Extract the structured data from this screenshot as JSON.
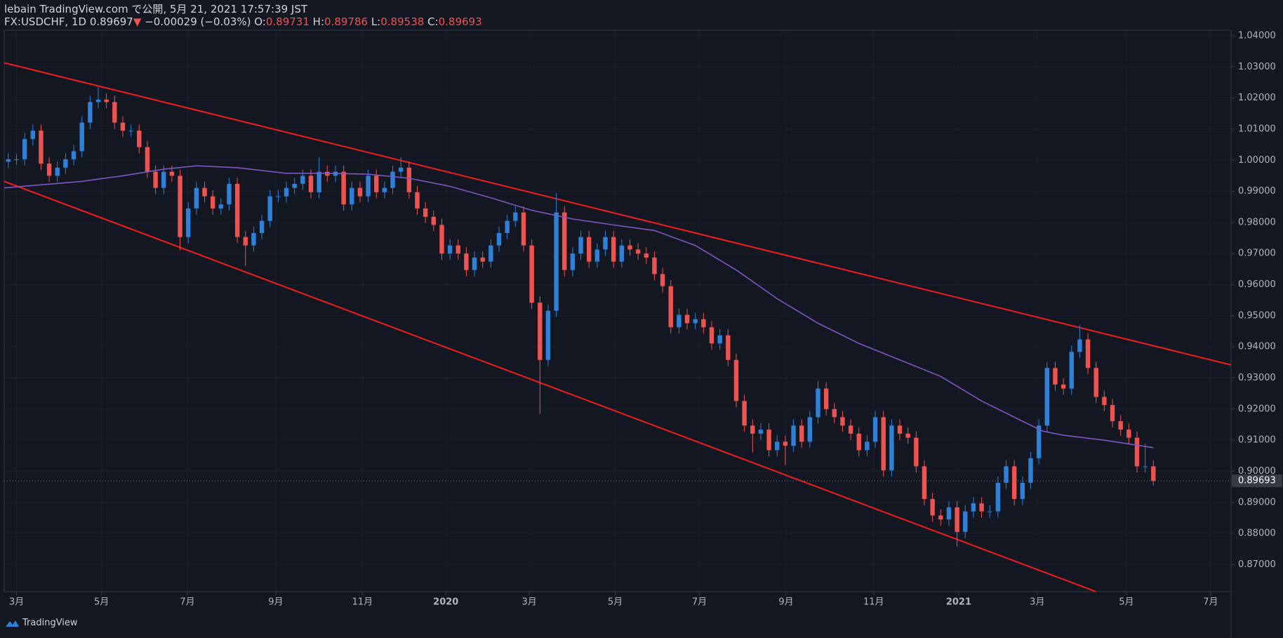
{
  "header": {
    "published": "lebain TradingView.com で公開, 5月 21, 2021 17:57:39 JST",
    "symbol": "FX:USDCHF, 1D",
    "price": "0.89697",
    "arrow": "▼",
    "change": "−0.00029 (−0.03%)",
    "ohlc": [
      {
        "label": "O:",
        "value": "0.89731"
      },
      {
        "label": "H:",
        "value": "0.89786"
      },
      {
        "label": "L:",
        "value": "0.89538"
      },
      {
        "label": "C:",
        "value": "0.89693"
      }
    ]
  },
  "footer": {
    "brand": "TradingView"
  },
  "chart_data": {
    "type": "candlestick",
    "up_color": "#2f80d8",
    "down_color": "#ef5350",
    "xlim": [
      -0.5,
      149.5
    ],
    "ylim": [
      0.8613,
      1.0418
    ],
    "grid": true,
    "xticks": [
      {
        "value": 1.0,
        "label": "3月"
      },
      {
        "value": 11.4,
        "label": "5月"
      },
      {
        "value": 21.9,
        "label": "7月"
      },
      {
        "value": 32.7,
        "label": "9月"
      },
      {
        "value": 43.3,
        "label": "11月"
      },
      {
        "value": 53.5,
        "label": "2020"
      },
      {
        "value": 63.7,
        "label": "3月"
      },
      {
        "value": 74.2,
        "label": "5月"
      },
      {
        "value": 84.5,
        "label": "7月"
      },
      {
        "value": 95.1,
        "label": "9月"
      },
      {
        "value": 105.8,
        "label": "11月"
      },
      {
        "value": 116.2,
        "label": "2021"
      },
      {
        "value": 125.8,
        "label": "3月"
      },
      {
        "value": 136.7,
        "label": "5月"
      },
      {
        "value": 147.0,
        "label": "7月"
      }
    ],
    "yticks": [
      {
        "value": 0.87,
        "label": "0.87000"
      },
      {
        "value": 0.88,
        "label": "0.88000"
      },
      {
        "value": 0.89,
        "label": "0.89000"
      },
      {
        "value": 0.9,
        "label": "0.90000"
      },
      {
        "value": 0.91,
        "label": "0.91000"
      },
      {
        "value": 0.92,
        "label": "0.92000"
      },
      {
        "value": 0.93,
        "label": "0.93000"
      },
      {
        "value": 0.94,
        "label": "0.94000"
      },
      {
        "value": 0.95,
        "label": "0.95000"
      },
      {
        "value": 0.96,
        "label": "0.96000"
      },
      {
        "value": 0.97,
        "label": "0.97000"
      },
      {
        "value": 0.98,
        "label": "0.98000"
      },
      {
        "value": 0.99,
        "label": "0.99000"
      },
      {
        "value": 1.0,
        "label": "1.00000"
      },
      {
        "value": 1.01,
        "label": "1.01000"
      },
      {
        "value": 1.02,
        "label": "1.02000"
      },
      {
        "value": 1.03,
        "label": "1.03000"
      },
      {
        "value": 1.04,
        "label": "1.04000"
      }
    ],
    "last_price": {
      "value": 0.89693,
      "label": "0.89693"
    },
    "candles": [
      [
        0.9995,
        1.0023,
        0.9975,
        1.0003
      ],
      [
        1.0003,
        1.002,
        0.9985,
        1.0003
      ],
      [
        1.0003,
        1.0088,
        0.9983,
        1.0068
      ],
      [
        1.0068,
        1.0115,
        1.0048,
        1.0095
      ],
      [
        1.0095,
        1.0115,
        0.9969,
        0.9989
      ],
      [
        0.9989,
        1.0009,
        0.993,
        0.995
      ],
      [
        0.995,
        0.9996,
        0.993,
        0.9976
      ],
      [
        0.9976,
        1.0023,
        0.9956,
        1.0003
      ],
      [
        1.0003,
        1.0049,
        0.9983,
        1.0029
      ],
      [
        1.0029,
        1.0141,
        1.0009,
        1.0121
      ],
      [
        1.0121,
        1.0207,
        1.0101,
        1.0187
      ],
      [
        1.0187,
        1.0235,
        1.0167,
        1.0195
      ],
      [
        1.0195,
        1.0215,
        1.0167,
        1.0187
      ],
      [
        1.0187,
        1.0207,
        1.0101,
        1.0121
      ],
      [
        1.0121,
        1.0141,
        1.0075,
        1.0095
      ],
      [
        1.0095,
        1.0115,
        1.0075,
        1.0095
      ],
      [
        1.0095,
        1.0115,
        1.0022,
        1.0042
      ],
      [
        1.0042,
        1.0062,
        0.9943,
        0.9963
      ],
      [
        0.9963,
        0.9983,
        0.9891,
        0.9911
      ],
      [
        0.9911,
        0.9983,
        0.9891,
        0.9963
      ],
      [
        0.9963,
        0.9983,
        0.993,
        0.995
      ],
      [
        0.995,
        0.997,
        0.971,
        0.9753
      ],
      [
        0.9753,
        0.9865,
        0.9733,
        0.9845
      ],
      [
        0.9845,
        0.9931,
        0.9825,
        0.9911
      ],
      [
        0.9911,
        0.9931,
        0.9864,
        0.9884
      ],
      [
        0.9884,
        0.9904,
        0.9825,
        0.9845
      ],
      [
        0.9845,
        0.9878,
        0.9825,
        0.9858
      ],
      [
        0.9858,
        0.9944,
        0.9838,
        0.9924
      ],
      [
        0.9924,
        0.9944,
        0.9733,
        0.9753
      ],
      [
        0.9753,
        0.9773,
        0.966,
        0.9726
      ],
      [
        0.9726,
        0.9786,
        0.9706,
        0.9766
      ],
      [
        0.9766,
        0.9825,
        0.9746,
        0.9805
      ],
      [
        0.9805,
        0.9904,
        0.9785,
        0.9884
      ],
      [
        0.9884,
        0.9904,
        0.9864,
        0.9884
      ],
      [
        0.9884,
        0.9931,
        0.9864,
        0.9911
      ],
      [
        0.9911,
        0.9944,
        0.9891,
        0.9924
      ],
      [
        0.9924,
        0.997,
        0.9904,
        0.995
      ],
      [
        0.995,
        0.997,
        0.9877,
        0.9897
      ],
      [
        0.9897,
        1.001,
        0.9877,
        0.9963
      ],
      [
        0.9963,
        0.9983,
        0.993,
        0.995
      ],
      [
        0.995,
        0.9983,
        0.993,
        0.9963
      ],
      [
        0.9963,
        0.9983,
        0.9838,
        0.9858
      ],
      [
        0.9858,
        0.9931,
        0.9838,
        0.9911
      ],
      [
        0.9911,
        0.9931,
        0.9864,
        0.9884
      ],
      [
        0.9884,
        0.997,
        0.9864,
        0.995
      ],
      [
        0.995,
        0.997,
        0.9877,
        0.9897
      ],
      [
        0.9897,
        0.9931,
        0.9877,
        0.9911
      ],
      [
        0.9911,
        0.9983,
        0.9891,
        0.9963
      ],
      [
        0.9963,
        1.001,
        0.9943,
        0.9976
      ],
      [
        0.9976,
        0.9996,
        0.9877,
        0.9897
      ],
      [
        0.9897,
        0.9917,
        0.9825,
        0.9845
      ],
      [
        0.9845,
        0.9865,
        0.9798,
        0.9818
      ],
      [
        0.9818,
        0.9838,
        0.9772,
        0.9792
      ],
      [
        0.9792,
        0.9812,
        0.968,
        0.97
      ],
      [
        0.97,
        0.9746,
        0.968,
        0.9726
      ],
      [
        0.9726,
        0.9746,
        0.968,
        0.97
      ],
      [
        0.97,
        0.972,
        0.9627,
        0.9647
      ],
      [
        0.9647,
        0.9707,
        0.9627,
        0.9687
      ],
      [
        0.9687,
        0.9707,
        0.9654,
        0.9674
      ],
      [
        0.9674,
        0.9746,
        0.9654,
        0.9726
      ],
      [
        0.9726,
        0.9786,
        0.9706,
        0.9766
      ],
      [
        0.9766,
        0.9825,
        0.9746,
        0.9805
      ],
      [
        0.9805,
        0.9852,
        0.9785,
        0.9832
      ],
      [
        0.9832,
        0.9852,
        0.9706,
        0.9726
      ],
      [
        0.9726,
        0.9746,
        0.9522,
        0.9542
      ],
      [
        0.9542,
        0.9562,
        0.9185,
        0.9358
      ],
      [
        0.9358,
        0.9536,
        0.9338,
        0.9516
      ],
      [
        0.9516,
        0.9895,
        0.9496,
        0.9832
      ],
      [
        0.9832,
        0.9852,
        0.9627,
        0.9647
      ],
      [
        0.9647,
        0.972,
        0.9627,
        0.97
      ],
      [
        0.97,
        0.9773,
        0.968,
        0.9753
      ],
      [
        0.9753,
        0.9773,
        0.9654,
        0.9674
      ],
      [
        0.9674,
        0.9733,
        0.9654,
        0.9713
      ],
      [
        0.9713,
        0.9773,
        0.9693,
        0.9753
      ],
      [
        0.9753,
        0.9773,
        0.9654,
        0.9674
      ],
      [
        0.9674,
        0.9746,
        0.9654,
        0.9726
      ],
      [
        0.9726,
        0.9746,
        0.9693,
        0.9713
      ],
      [
        0.9713,
        0.9733,
        0.968,
        0.97
      ],
      [
        0.97,
        0.972,
        0.9667,
        0.9687
      ],
      [
        0.9687,
        0.9707,
        0.9614,
        0.9634
      ],
      [
        0.9634,
        0.9654,
        0.9575,
        0.9595
      ],
      [
        0.9595,
        0.9615,
        0.9443,
        0.9463
      ],
      [
        0.9463,
        0.9523,
        0.9443,
        0.9503
      ],
      [
        0.9503,
        0.9523,
        0.9456,
        0.9476
      ],
      [
        0.9476,
        0.9509,
        0.9456,
        0.9489
      ],
      [
        0.9489,
        0.9509,
        0.9443,
        0.9463
      ],
      [
        0.9463,
        0.9483,
        0.9391,
        0.9411
      ],
      [
        0.9411,
        0.9457,
        0.9391,
        0.9437
      ],
      [
        0.9437,
        0.9457,
        0.9338,
        0.9358
      ],
      [
        0.9358,
        0.9378,
        0.9206,
        0.9226
      ],
      [
        0.9226,
        0.9246,
        0.9127,
        0.9147
      ],
      [
        0.9147,
        0.9167,
        0.906,
        0.9121
      ],
      [
        0.9121,
        0.9154,
        0.9101,
        0.9134
      ],
      [
        0.9134,
        0.9154,
        0.9048,
        0.9068
      ],
      [
        0.9068,
        0.9115,
        0.9048,
        0.9095
      ],
      [
        0.9095,
        0.9115,
        0.902,
        0.9082
      ],
      [
        0.9082,
        0.9167,
        0.9062,
        0.9147
      ],
      [
        0.9147,
        0.9167,
        0.9075,
        0.9095
      ],
      [
        0.9095,
        0.9194,
        0.9075,
        0.9174
      ],
      [
        0.9174,
        0.929,
        0.9154,
        0.9266
      ],
      [
        0.9266,
        0.9286,
        0.918,
        0.92
      ],
      [
        0.92,
        0.922,
        0.9154,
        0.9174
      ],
      [
        0.9174,
        0.9194,
        0.9127,
        0.9147
      ],
      [
        0.9147,
        0.9167,
        0.9101,
        0.9121
      ],
      [
        0.9121,
        0.9141,
        0.9048,
        0.9068
      ],
      [
        0.9068,
        0.9115,
        0.9048,
        0.9095
      ],
      [
        0.9095,
        0.9194,
        0.9075,
        0.9174
      ],
      [
        0.9174,
        0.9194,
        0.8983,
        0.9003
      ],
      [
        0.9003,
        0.9167,
        0.8983,
        0.9147
      ],
      [
        0.9147,
        0.9167,
        0.9101,
        0.9121
      ],
      [
        0.9121,
        0.9141,
        0.9088,
        0.9108
      ],
      [
        0.9108,
        0.9128,
        0.8996,
        0.9016
      ],
      [
        0.9016,
        0.9036,
        0.8891,
        0.8911
      ],
      [
        0.8911,
        0.8931,
        0.8838,
        0.8858
      ],
      [
        0.8858,
        0.8878,
        0.8825,
        0.8845
      ],
      [
        0.8845,
        0.8904,
        0.8825,
        0.8884
      ],
      [
        0.8884,
        0.8904,
        0.8758,
        0.8805
      ],
      [
        0.8805,
        0.8891,
        0.8785,
        0.8871
      ],
      [
        0.8871,
        0.8917,
        0.8851,
        0.8897
      ],
      [
        0.8897,
        0.8917,
        0.8851,
        0.8871
      ],
      [
        0.8871,
        0.8891,
        0.8851,
        0.8871
      ],
      [
        0.8871,
        0.8983,
        0.8851,
        0.8963
      ],
      [
        0.8963,
        0.9036,
        0.8943,
        0.9016
      ],
      [
        0.9016,
        0.9036,
        0.8891,
        0.8911
      ],
      [
        0.8911,
        0.8983,
        0.8891,
        0.8963
      ],
      [
        0.8963,
        0.9062,
        0.8943,
        0.9042
      ],
      [
        0.9042,
        0.9167,
        0.9022,
        0.9147
      ],
      [
        0.9147,
        0.9352,
        0.9127,
        0.9332
      ],
      [
        0.9332,
        0.9352,
        0.9259,
        0.9279
      ],
      [
        0.9279,
        0.9299,
        0.9246,
        0.9266
      ],
      [
        0.9266,
        0.9404,
        0.9246,
        0.9384
      ],
      [
        0.9384,
        0.947,
        0.9364,
        0.9424
      ],
      [
        0.9424,
        0.9444,
        0.9312,
        0.9332
      ],
      [
        0.9332,
        0.9352,
        0.9219,
        0.9239
      ],
      [
        0.9239,
        0.9259,
        0.9193,
        0.9213
      ],
      [
        0.9213,
        0.9233,
        0.9141,
        0.9161
      ],
      [
        0.9161,
        0.9181,
        0.9114,
        0.9134
      ],
      [
        0.9134,
        0.9154,
        0.9088,
        0.9108
      ],
      [
        0.9108,
        0.9128,
        0.8996,
        0.9016
      ],
      [
        0.9016,
        0.909,
        0.8996,
        0.9016
      ],
      [
        0.9016,
        0.9036,
        0.8954,
        0.8969
      ]
    ],
    "ma": {
      "color": "#7e57c2",
      "x": [
        -0.5,
        9,
        14,
        19,
        23,
        28,
        34,
        39,
        44,
        49,
        54,
        59,
        64,
        69,
        74,
        79,
        84,
        89,
        94,
        99,
        104,
        109,
        114,
        119,
        124,
        126.5,
        129,
        134,
        140
      ],
      "values": [
        0.9911,
        0.9932,
        0.995,
        0.9971,
        0.9982,
        0.9976,
        0.9958,
        0.9958,
        0.9955,
        0.9942,
        0.9916,
        0.9879,
        0.9839,
        0.9811,
        0.9792,
        0.9774,
        0.9726,
        0.9647,
        0.9555,
        0.9476,
        0.9411,
        0.9358,
        0.9305,
        0.9226,
        0.9161,
        0.9129,
        0.9116,
        0.91,
        0.9076
      ]
    },
    "trendlines": [
      {
        "color": "#f21c1c",
        "x": [
          -0.5,
          149.5
        ],
        "values": [
          1.0313,
          0.9342
        ]
      },
      {
        "color": "#f21c1c",
        "x": [
          -0.5,
          133
        ],
        "values": [
          0.9932,
          0.8613
        ]
      }
    ]
  }
}
